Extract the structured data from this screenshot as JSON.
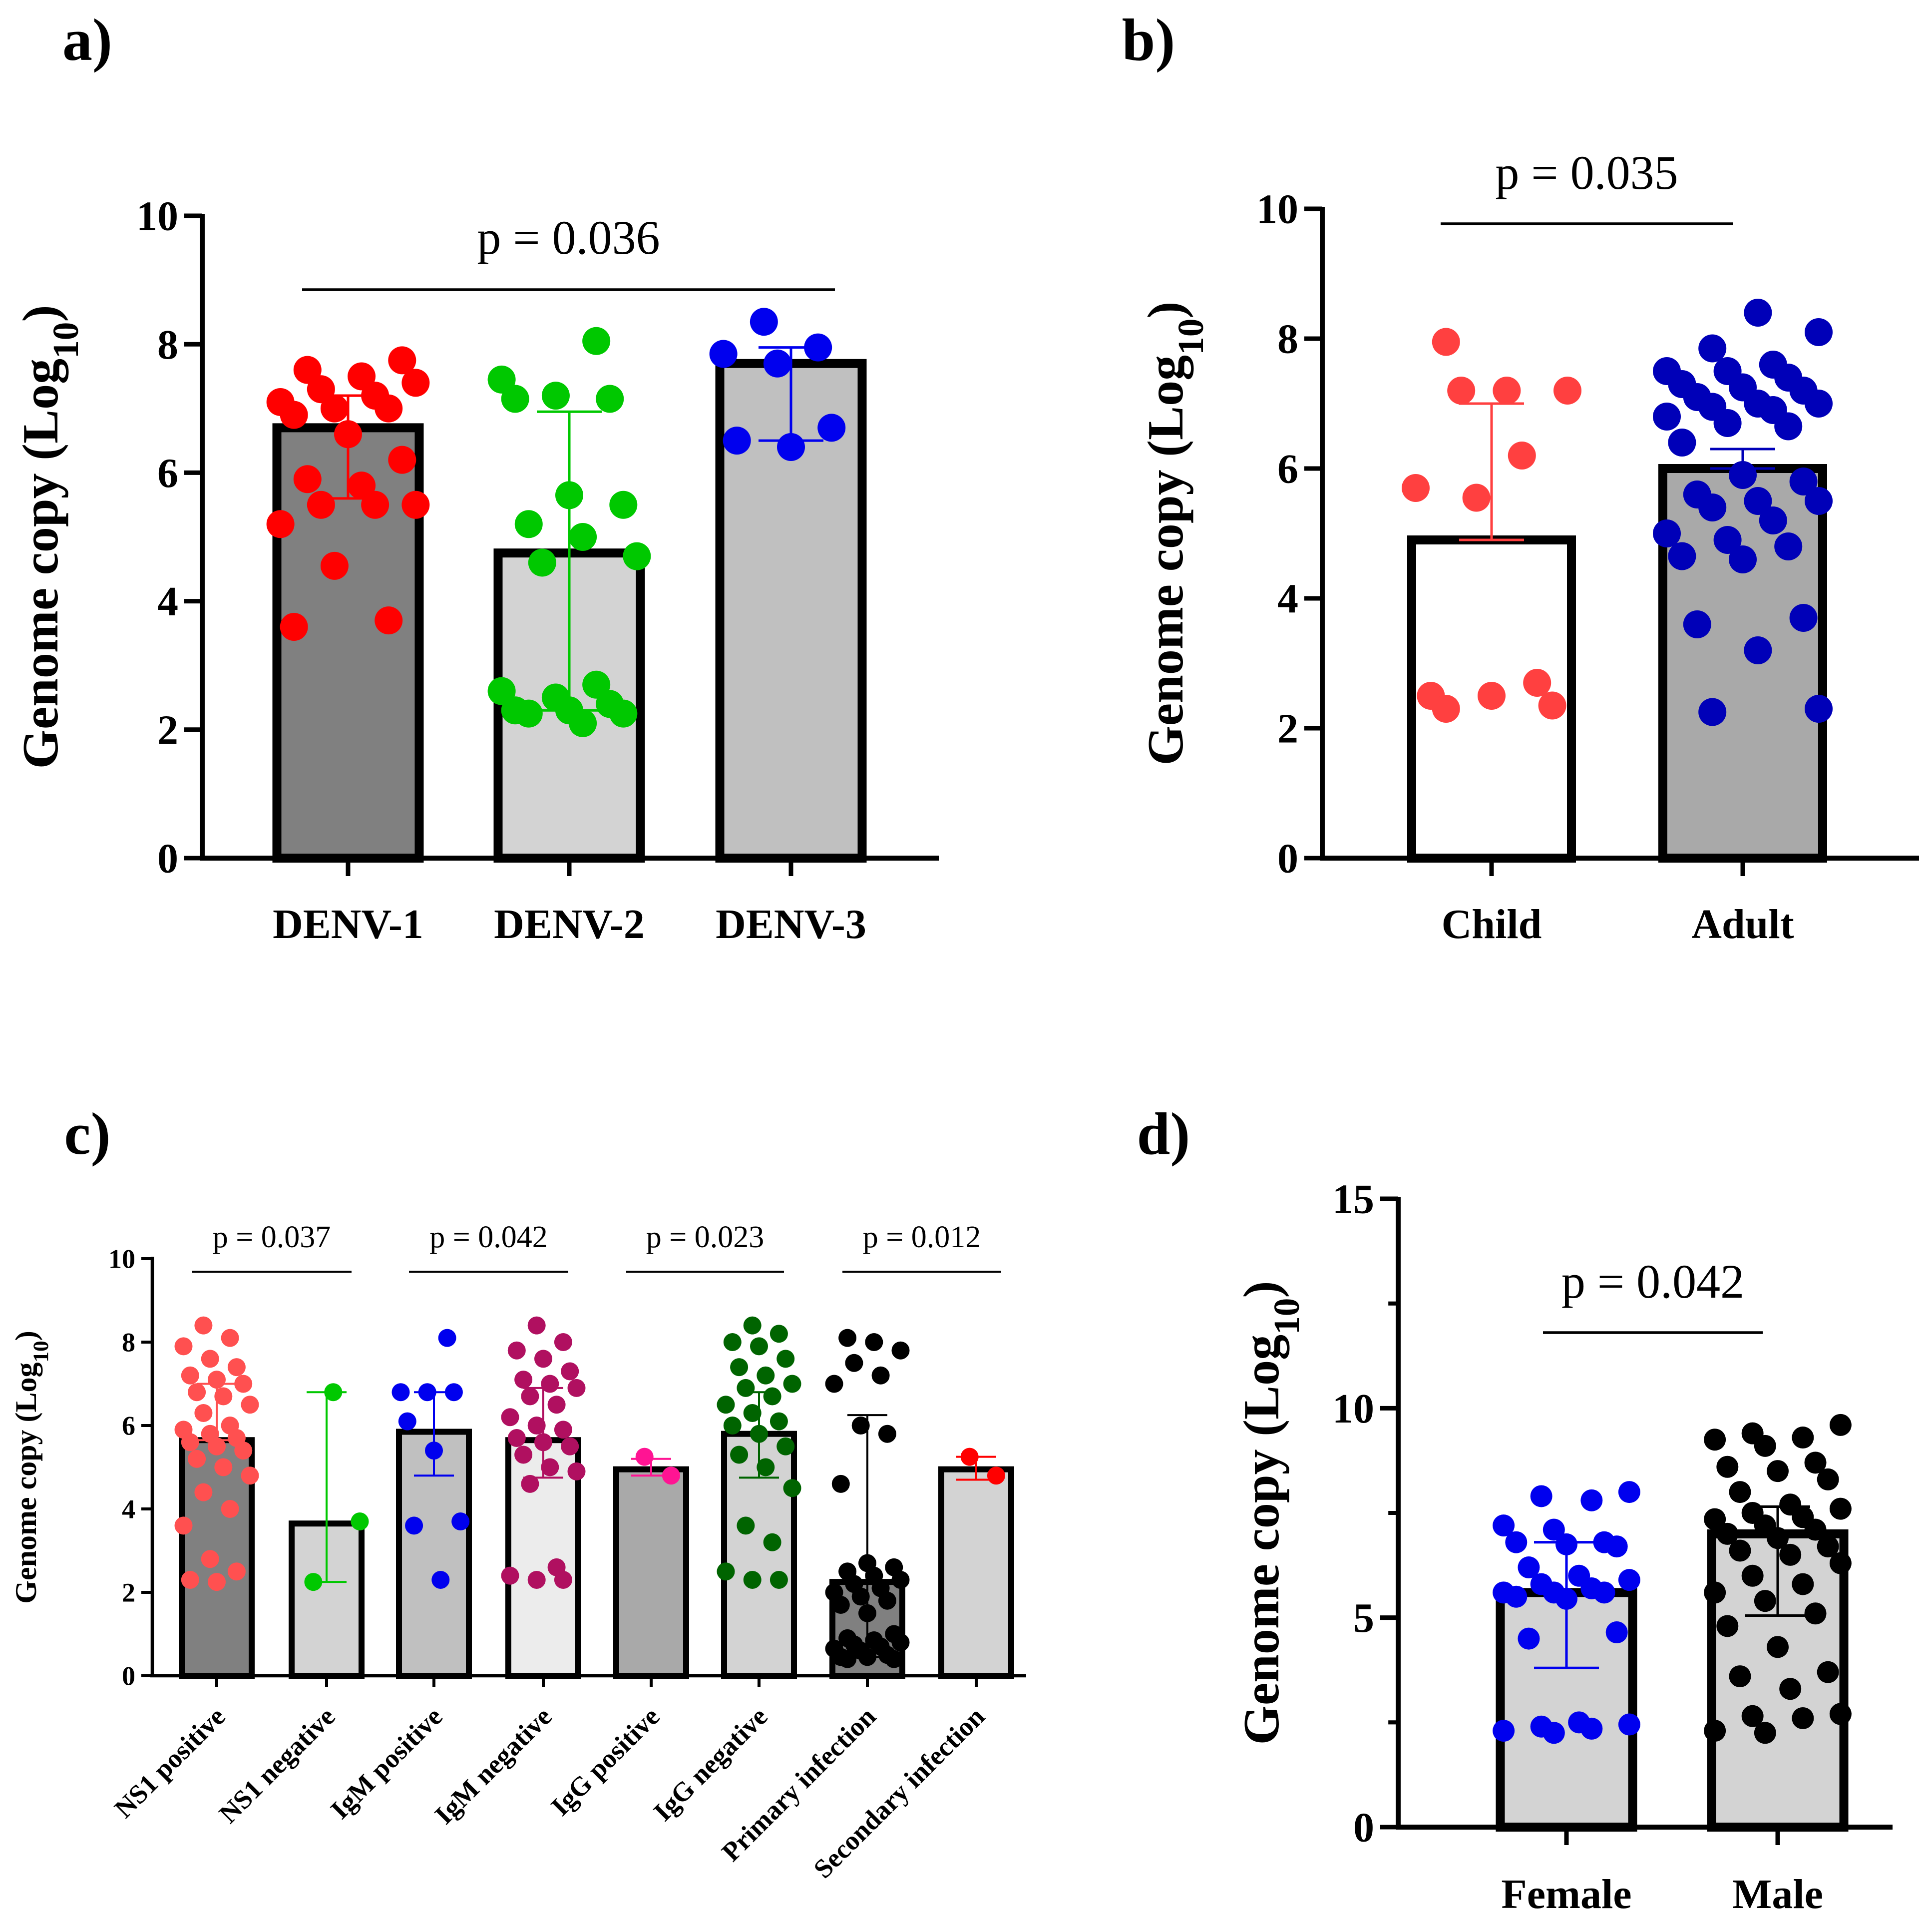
{
  "chart_data": [
    {
      "panel_label": "a)",
      "type": "bar",
      "ylabel": "Genome copy (Log",
      "ylabel_sub": "10",
      "ylabel_close": ")",
      "yticks": [
        "0",
        "2",
        "4",
        "6",
        "8",
        "10"
      ],
      "ylim": [
        0,
        10
      ],
      "categories": [
        "DENV-1",
        "DENV-2",
        "DENV-3"
      ],
      "values": [
        6.7,
        4.75,
        7.7
      ],
      "bar_colors": [
        "#808080",
        "#d3d3d3",
        "#c0c0c0"
      ],
      "point_colors": [
        "#ff0000",
        "#00c800",
        "#0000ee"
      ],
      "errors": [
        [
          5.6,
          7.2
        ],
        [
          2.3,
          6.95
        ],
        [
          6.5,
          7.95
        ]
      ],
      "points": [
        [
          7.75,
          7.6,
          7.5,
          7.4,
          7.3,
          7.2,
          7.1,
          7.0,
          7.0,
          6.9,
          6.6,
          6.2,
          5.9,
          5.8,
          5.5,
          5.5,
          5.5,
          5.2,
          4.55,
          3.7,
          3.6
        ],
        [
          8.05,
          7.45,
          7.2,
          7.15,
          7.15,
          5.65,
          5.5,
          5.2,
          5.0,
          4.7,
          4.6,
          2.7,
          2.6,
          2.5,
          2.4,
          2.3,
          2.3,
          2.25,
          2.25,
          2.1
        ],
        [
          8.35,
          7.95,
          7.85,
          7.7,
          6.7,
          6.5,
          6.4
        ]
      ],
      "annotations": [
        {
          "text": "p = 0.036",
          "from": 0,
          "to": 2
        }
      ]
    },
    {
      "panel_label": "b)",
      "type": "bar",
      "ylabel": "Genome copy (Log",
      "ylabel_sub": "10",
      "ylabel_close": ")",
      "yticks": [
        "0",
        "2",
        "4",
        "6",
        "8",
        "10"
      ],
      "ylim": [
        0,
        10
      ],
      "categories": [
        "Child",
        "Adult"
      ],
      "values": [
        4.9,
        6.0
      ],
      "bar_colors": [
        "#ffffff",
        "#a9a9a9"
      ],
      "point_colors": [
        "#ff4040",
        "#0000b8"
      ],
      "errors": [
        [
          4.9,
          7.0
        ],
        [
          6.0,
          6.3
        ]
      ],
      "points": [
        [
          7.95,
          7.2,
          7.2,
          7.2,
          6.2,
          5.7,
          5.55,
          2.7,
          2.5,
          2.5,
          2.35,
          2.3
        ],
        [
          8.4,
          8.1,
          7.85,
          7.6,
          7.5,
          7.5,
          7.4,
          7.3,
          7.25,
          7.2,
          7.1,
          7.0,
          7.0,
          6.95,
          6.9,
          6.8,
          6.7,
          6.65,
          6.4,
          5.9,
          5.8,
          5.6,
          5.5,
          5.5,
          5.4,
          5.2,
          5.0,
          4.9,
          4.8,
          4.65,
          4.6,
          3.7,
          3.6,
          3.2,
          2.3,
          2.25
        ]
      ],
      "annotations": [
        {
          "text": "p = 0.035",
          "from": 0,
          "to": 1
        }
      ]
    },
    {
      "panel_label": "c)",
      "type": "bar",
      "ylabel": "Genome copy (Log",
      "ylabel_sub": "10",
      "ylabel_close": ")",
      "yticks": [
        "0",
        "2",
        "4",
        "6",
        "8",
        "10"
      ],
      "ylim": [
        0,
        10
      ],
      "categories": [
        "NS1 positive",
        "NS1 negative",
        "IgM positive",
        "IgM negative",
        "IgG positive",
        "IgG negative",
        "Primary infection",
        "Secondary infection"
      ],
      "values": [
        5.65,
        3.65,
        5.85,
        5.65,
        4.95,
        5.8,
        2.25,
        4.95
      ],
      "bar_colors": [
        "#808080",
        "#d3d3d3",
        "#c0c0c0",
        "#ececec",
        "#a9a9a9",
        "#d3d3d3",
        "#808080",
        "#d3d3d3"
      ],
      "point_colors": [
        "#ff5050",
        "#00c800",
        "#0000ee",
        "#b01060",
        "#ff1493",
        "#006400",
        "#000000",
        "#ff0000"
      ],
      "errors": [
        [
          5.65,
          7.0
        ],
        [
          2.25,
          6.8
        ],
        [
          4.8,
          6.8
        ],
        [
          4.75,
          6.9
        ],
        [
          4.8,
          5.2
        ],
        [
          4.75,
          6.8
        ],
        [
          0.45,
          6.25
        ],
        [
          4.7,
          5.25
        ]
      ],
      "points": [
        [
          8.4,
          8.1,
          7.9,
          7.6,
          7.4,
          7.2,
          7.1,
          7.0,
          6.8,
          6.7,
          6.5,
          6.3,
          6.0,
          5.9,
          5.8,
          5.7,
          5.6,
          5.5,
          5.4,
          5.2,
          5.0,
          4.8,
          4.4,
          4.0,
          3.6,
          2.8,
          2.5,
          2.3,
          2.25
        ],
        [
          6.8,
          3.7,
          2.25
        ],
        [
          8.1,
          6.8,
          6.8,
          6.8,
          6.1,
          5.4,
          3.7,
          3.6,
          2.3
        ],
        [
          8.4,
          8.0,
          7.8,
          7.6,
          7.3,
          7.1,
          7.0,
          6.9,
          6.7,
          6.5,
          6.2,
          6.0,
          5.9,
          5.7,
          5.6,
          5.5,
          5.3,
          5.0,
          4.9,
          4.6,
          2.6,
          2.4,
          2.3,
          2.3
        ],
        [
          5.25,
          4.8
        ],
        [
          8.4,
          8.2,
          8.0,
          7.9,
          7.6,
          7.4,
          7.2,
          7.0,
          6.9,
          6.7,
          6.5,
          6.3,
          6.1,
          6.0,
          5.8,
          5.5,
          5.3,
          5.0,
          4.5,
          3.6,
          3.2,
          2.5,
          2.3,
          2.3
        ],
        [
          8.1,
          8.0,
          7.8,
          7.5,
          7.2,
          7.0,
          6.0,
          5.8,
          4.6,
          2.7,
          2.6,
          2.5,
          2.4,
          2.3,
          2.2,
          2.1,
          2.0,
          1.9,
          1.8,
          1.7,
          1.5,
          1.0,
          0.9,
          0.85,
          0.8,
          0.75,
          0.7,
          0.65,
          0.6,
          0.5,
          0.45,
          0.45,
          0.4,
          0.4
        ],
        [
          5.25,
          4.8
        ]
      ],
      "annotations": [
        {
          "text": "p = 0.037",
          "from": 0,
          "to": 1
        },
        {
          "text": "p = 0.042",
          "from": 2,
          "to": 3
        },
        {
          "text": "p = 0.023",
          "from": 4,
          "to": 5
        },
        {
          "text": "p = 0.012",
          "from": 6,
          "to": 7
        }
      ]
    },
    {
      "panel_label": "d)",
      "type": "bar",
      "ylabel": "Genome copy (Log",
      "ylabel_sub": "10",
      "ylabel_close": ")",
      "yticks": [
        "0",
        "5",
        "10",
        "15"
      ],
      "ylim": [
        0,
        15
      ],
      "categories": [
        "Female",
        "Male"
      ],
      "values": [
        5.6,
        7.0
      ],
      "bar_colors": [
        "#d3d3d3",
        "#d3d3d3"
      ],
      "point_colors": [
        "#0000ee",
        "#000000"
      ],
      "errors": [
        [
          3.8,
          6.8
        ],
        [
          5.05,
          7.65
        ]
      ],
      "points": [
        [
          8.0,
          7.9,
          7.8,
          7.2,
          7.1,
          6.8,
          6.8,
          6.75,
          6.7,
          6.2,
          6.0,
          5.9,
          5.8,
          5.7,
          5.6,
          5.6,
          5.6,
          5.5,
          5.45,
          4.65,
          4.5,
          2.5,
          2.45,
          2.4,
          2.35,
          2.3,
          2.25
        ],
        [
          9.6,
          9.4,
          9.3,
          9.25,
          9.1,
          8.7,
          8.6,
          8.5,
          8.3,
          8.0,
          7.7,
          7.6,
          7.5,
          7.4,
          7.35,
          7.2,
          7.1,
          7.0,
          6.9,
          6.7,
          6.6,
          6.5,
          6.3,
          6.0,
          5.8,
          5.6,
          5.4,
          5.1,
          4.8,
          4.3,
          3.7,
          3.6,
          3.3,
          2.7,
          2.65,
          2.6,
          2.3,
          2.25
        ]
      ],
      "annotations": [
        {
          "text": "p = 0.042",
          "from": 0,
          "to": 1
        }
      ]
    }
  ]
}
